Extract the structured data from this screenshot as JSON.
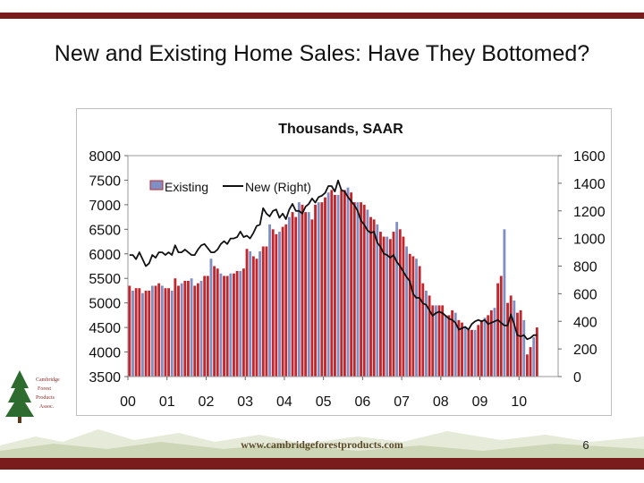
{
  "slide": {
    "title": "New and Existing Home Sales: Have They Bottomed?",
    "footer_url": "www.cambridgeforestproducts.com",
    "page_number": "6",
    "logo_lines": [
      "Cambridge",
      "Forest",
      "Products",
      "Assoc."
    ]
  },
  "colors": {
    "bar_red": "#c0272d",
    "bar_blue": "#7f8fc4",
    "line": "#111111",
    "brand_band": "#7a1c1c"
  },
  "chart_data": {
    "type": "bar",
    "title": "Thousands, SAAR",
    "x_tick_labels": [
      "00",
      "01",
      "02",
      "03",
      "04",
      "05",
      "06",
      "07",
      "08",
      "09",
      "10"
    ],
    "left_axis": {
      "ylim": [
        3500,
        8000
      ],
      "ticks": [
        "8000",
        "7500",
        "7000",
        "6500",
        "6000",
        "5500",
        "5000",
        "4500",
        "4000",
        "3500"
      ]
    },
    "right_axis": {
      "ylim": [
        0,
        1600
      ],
      "ticks": [
        "1600",
        "1400",
        "1200",
        "1000",
        "800",
        "600",
        "400",
        "200",
        "0"
      ]
    },
    "legend": {
      "placement": "top-left",
      "entries": [
        "Existing",
        "New (Right)"
      ]
    },
    "series": [
      {
        "name": "Existing",
        "axis": "left",
        "values": [
          5350,
          5250,
          5300,
          5300,
          5200,
          5250,
          5250,
          5350,
          5350,
          5400,
          5350,
          5300,
          5300,
          5250,
          5500,
          5350,
          5400,
          5450,
          5450,
          5500,
          5350,
          5400,
          5450,
          5550,
          5550,
          5900,
          5750,
          5700,
          5600,
          5550,
          5550,
          5600,
          5600,
          5650,
          5650,
          5700,
          6100,
          6050,
          5950,
          5900,
          6050,
          6150,
          6150,
          6600,
          6500,
          6400,
          6450,
          6550,
          6600,
          6750,
          6850,
          6750,
          7050,
          7000,
          6850,
          6850,
          6700,
          7000,
          7050,
          7050,
          7150,
          7250,
          7300,
          7200,
          7200,
          7300,
          7300,
          7350,
          7250,
          7050,
          7050,
          7050,
          7000,
          6900,
          6750,
          6700,
          6600,
          6450,
          6350,
          6350,
          6300,
          6450,
          6650,
          6500,
          6350,
          6150,
          6000,
          5950,
          5900,
          5750,
          5400,
          5250,
          5150,
          4950,
          4950,
          4950,
          4950,
          4750,
          4750,
          4850,
          4800,
          4650,
          4600,
          4500,
          4450,
          4450,
          4450,
          4550,
          4650,
          4700,
          4750,
          4850,
          4900,
          5400,
          5550,
          6500,
          5000,
          5150,
          5050,
          4800,
          4850,
          4650,
          3950,
          4100,
          4300,
          4500
        ]
      },
      {
        "name": "New (Right)",
        "axis": "right",
        "values": [
          880,
          880,
          850,
          900,
          850,
          800,
          820,
          880,
          860,
          900,
          900,
          880,
          900,
          880,
          950,
          900,
          900,
          920,
          900,
          880,
          880,
          920,
          950,
          960,
          930,
          900,
          900,
          920,
          960,
          980,
          960,
          1000,
          1000,
          1010,
          1050,
          1010,
          1020,
          1000,
          1040,
          1090,
          1100,
          1220,
          1180,
          1160,
          1200,
          1210,
          1150,
          1180,
          1140,
          1210,
          1250,
          1200,
          1200,
          1180,
          1230,
          1250,
          1290,
          1260,
          1300,
          1310,
          1330,
          1380,
          1380,
          1340,
          1420,
          1350,
          1340,
          1300,
          1270,
          1240,
          1200,
          1130,
          1100,
          1060,
          1040,
          1050,
          970,
          940,
          890,
          880,
          860,
          880,
          830,
          800,
          760,
          720,
          690,
          600,
          570,
          570,
          530,
          520,
          480,
          440,
          460,
          470,
          460,
          440,
          420,
          410,
          390,
          340,
          350,
          360,
          340,
          380,
          400,
          410,
          400,
          410,
          380,
          390,
          400,
          410,
          390,
          370,
          370,
          450,
          380,
          300,
          290,
          300,
          270,
          280,
          300,
          300
        ]
      }
    ]
  }
}
